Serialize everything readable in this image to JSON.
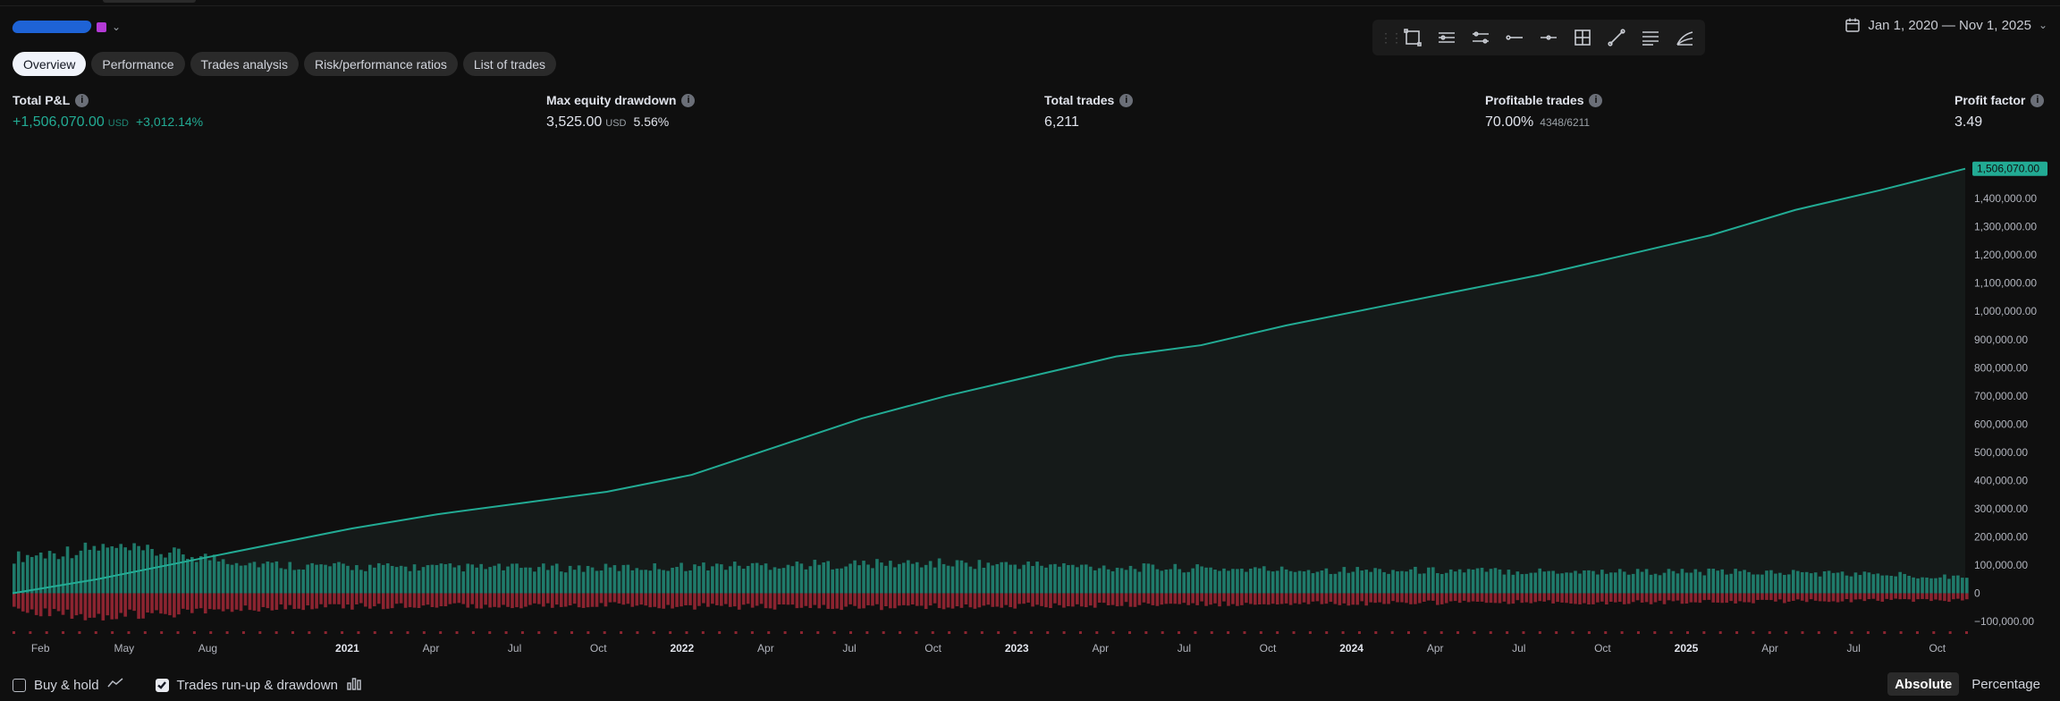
{
  "header": {
    "date_range": "Jan 1, 2020 — Nov 1, 2025"
  },
  "tabs": [
    {
      "label": "Overview",
      "active": true
    },
    {
      "label": "Performance",
      "active": false
    },
    {
      "label": "Trades analysis",
      "active": false
    },
    {
      "label": "Risk/performance ratios",
      "active": false
    },
    {
      "label": "List of trades",
      "active": false
    }
  ],
  "toolbar": {
    "icons": [
      "rectangle-tool-icon",
      "parallel-lines-icon",
      "channel-lines-icon",
      "horizontal-ray-icon",
      "horizontal-line-icon",
      "crosshair-box-icon",
      "trend-line-icon",
      "multi-lines-icon",
      "fib-fan-icon"
    ]
  },
  "metrics": {
    "total_pnl": {
      "label": "Total P&L",
      "value": "+1,506,070.00",
      "unit": "USD",
      "sub": "+3,012.14%"
    },
    "max_drawdown": {
      "label": "Max equity drawdown",
      "value": "3,525.00",
      "unit": "USD",
      "sub": "5.56%"
    },
    "total_trades": {
      "label": "Total trades",
      "value": "6,211"
    },
    "profitable_trades": {
      "label": "Profitable trades",
      "value": "70.00%",
      "sub": "4348/6211"
    },
    "profit_factor": {
      "label": "Profit factor",
      "value": "3.49"
    }
  },
  "chart_data": {
    "type": "line",
    "series": [
      {
        "x": [
          "2020-01",
          "2020-04",
          "2020-07",
          "2020-10",
          "2021-01",
          "2021-04",
          "2021-07",
          "2021-10",
          "2022-01",
          "2022-04",
          "2022-07",
          "2022-10",
          "2023-01",
          "2023-04",
          "2023-07",
          "2023-10",
          "2024-01",
          "2024-04",
          "2024-07",
          "2024-10",
          "2025-01",
          "2025-04",
          "2025-07",
          "2025-11"
        ],
        "values": [
          0,
          50000,
          110000,
          170000,
          230000,
          280000,
          320000,
          360000,
          420000,
          520000,
          620000,
          700000,
          770000,
          840000,
          880000,
          950000,
          1010000,
          1070000,
          1130000,
          1200000,
          1270000,
          1360000,
          1430000,
          1506070
        ]
      }
    ],
    "runup_bars": [
      150000,
      190000,
      160000,
      120000,
      110000,
      108000,
      106000,
      105000,
      112000,
      118000,
      122000,
      125000,
      118000,
      108000,
      103000,
      98000,
      96000,
      94000,
      92000,
      90000,
      88000,
      86000,
      78000,
      70000
    ],
    "drawdown_bars": [
      -80000,
      -100000,
      -85000,
      -65000,
      -58000,
      -55000,
      -55000,
      -52000,
      -58000,
      -60000,
      -60000,
      -58000,
      -55000,
      -50000,
      -48000,
      -46000,
      -44000,
      -42000,
      -40000,
      -40000,
      -38000,
      -36000,
      -32000,
      -30000
    ],
    "ylim": [
      -100000,
      1540000
    ],
    "y_ticks": [
      1400000,
      1300000,
      1200000,
      1100000,
      1000000,
      900000,
      800000,
      700000,
      600000,
      500000,
      400000,
      300000,
      200000,
      100000,
      0,
      -100000
    ],
    "y_tick_labels": [
      "1,400,000.00",
      "1,300,000.00",
      "1,200,000.00",
      "1,100,000.00",
      "1,000,000.00",
      "900,000.00",
      "800,000.00",
      "700,000.00",
      "600,000.00",
      "500,000.00",
      "400,000.00",
      "300,000.00",
      "200,000.00",
      "100,000.00",
      "0",
      "−100,000.00"
    ],
    "last_value_label": "1,506,070.00",
    "x_tick_labels": [
      {
        "label": "Feb",
        "month": 1,
        "bold": false
      },
      {
        "label": "May",
        "month": 4,
        "bold": false
      },
      {
        "label": "Aug",
        "month": 7,
        "bold": false
      },
      {
        "label": "2021",
        "month": 12,
        "bold": true
      },
      {
        "label": "Apr",
        "month": 15,
        "bold": false
      },
      {
        "label": "Jul",
        "month": 18,
        "bold": false
      },
      {
        "label": "Oct",
        "month": 21,
        "bold": false
      },
      {
        "label": "2022",
        "month": 24,
        "bold": true
      },
      {
        "label": "Apr",
        "month": 27,
        "bold": false
      },
      {
        "label": "Jul",
        "month": 30,
        "bold": false
      },
      {
        "label": "Oct",
        "month": 33,
        "bold": false
      },
      {
        "label": "2023",
        "month": 36,
        "bold": true
      },
      {
        "label": "Apr",
        "month": 39,
        "bold": false
      },
      {
        "label": "Jul",
        "month": 42,
        "bold": false
      },
      {
        "label": "Oct",
        "month": 45,
        "bold": false
      },
      {
        "label": "2024",
        "month": 48,
        "bold": true
      },
      {
        "label": "Apr",
        "month": 51,
        "bold": false
      },
      {
        "label": "Jul",
        "month": 54,
        "bold": false
      },
      {
        "label": "Oct",
        "month": 57,
        "bold": false
      },
      {
        "label": "2025",
        "month": 60,
        "bold": true
      },
      {
        "label": "Apr",
        "month": 63,
        "bold": false
      },
      {
        "label": "Jul",
        "month": 66,
        "bold": false
      },
      {
        "label": "Oct",
        "month": 69,
        "bold": false
      }
    ],
    "x_month_range": [
      0,
      70
    ],
    "colors": {
      "equity_line": "#22ab94",
      "runup": "#1f7a6a",
      "drawdown": "#8b2430",
      "label_bg": "#22ab94"
    }
  },
  "footer": {
    "buy_hold_label": "Buy & hold",
    "buy_hold_checked": false,
    "runup_label": "Trades run-up & drawdown",
    "runup_checked": true,
    "absolute_label": "Absolute",
    "percentage_label": "Percentage",
    "mode_selected": "Absolute"
  }
}
